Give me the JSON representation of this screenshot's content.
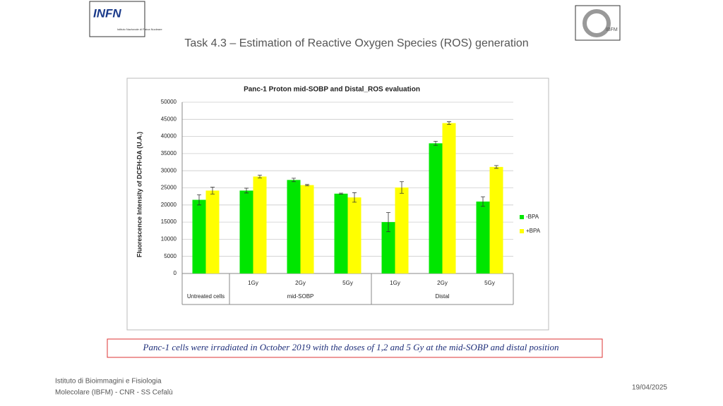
{
  "header": {
    "title": "Task 4.3 – Estimation of Reactive Oxygen Species (ROS) generation"
  },
  "logos": {
    "left": {
      "name": "INFN",
      "subtitle": "Istituto Nazionale di Fisica Nucleare"
    },
    "right": {
      "name": "IBFM"
    }
  },
  "chart_data": {
    "type": "bar",
    "title": "Panc-1 Proton mid-SOBP and Distal_ROS evaluation",
    "ylabel": "Fluorescence Intensity of DCFH-DA (U.A.)",
    "categories": [
      null,
      "1Gy",
      "2Gy",
      "5Gy",
      "1Gy",
      "2Gy",
      "5Gy"
    ],
    "groups": [
      {
        "label": "Untreated cells",
        "size": 1
      },
      {
        "label": "mid-SOBP",
        "size": 3
      },
      {
        "label": "Distal",
        "size": 3
      }
    ],
    "series": [
      {
        "name": "-BPA",
        "color": "#00e600",
        "values": [
          21500,
          24200,
          27300,
          23300,
          15000,
          38000,
          21000
        ],
        "errors": [
          1500,
          700,
          500,
          150,
          2800,
          600,
          1400
        ]
      },
      {
        "name": "+BPA",
        "color": "#ffff00",
        "values": [
          24200,
          28300,
          25800,
          22200,
          25100,
          43900,
          31100
        ],
        "errors": [
          1000,
          400,
          200,
          1400,
          1700,
          400,
          400
        ]
      }
    ],
    "ylim": [
      0,
      50000
    ],
    "yticks": [
      0,
      5000,
      10000,
      15000,
      20000,
      25000,
      30000,
      35000,
      40000,
      45000,
      50000
    ],
    "grid": true,
    "legend": "right"
  },
  "caption": "Panc-1 cells were irradiated in October 2019 with the doses of 1,2 and 5 Gy at the mid-SOBP and distal position",
  "footer": {
    "institute_line1": "Istituto di Bioimmagini e Fisiologia",
    "institute_line2": "Molecolare (IBFM) - CNR - SS Cefalù",
    "date": "19/04/2025"
  }
}
